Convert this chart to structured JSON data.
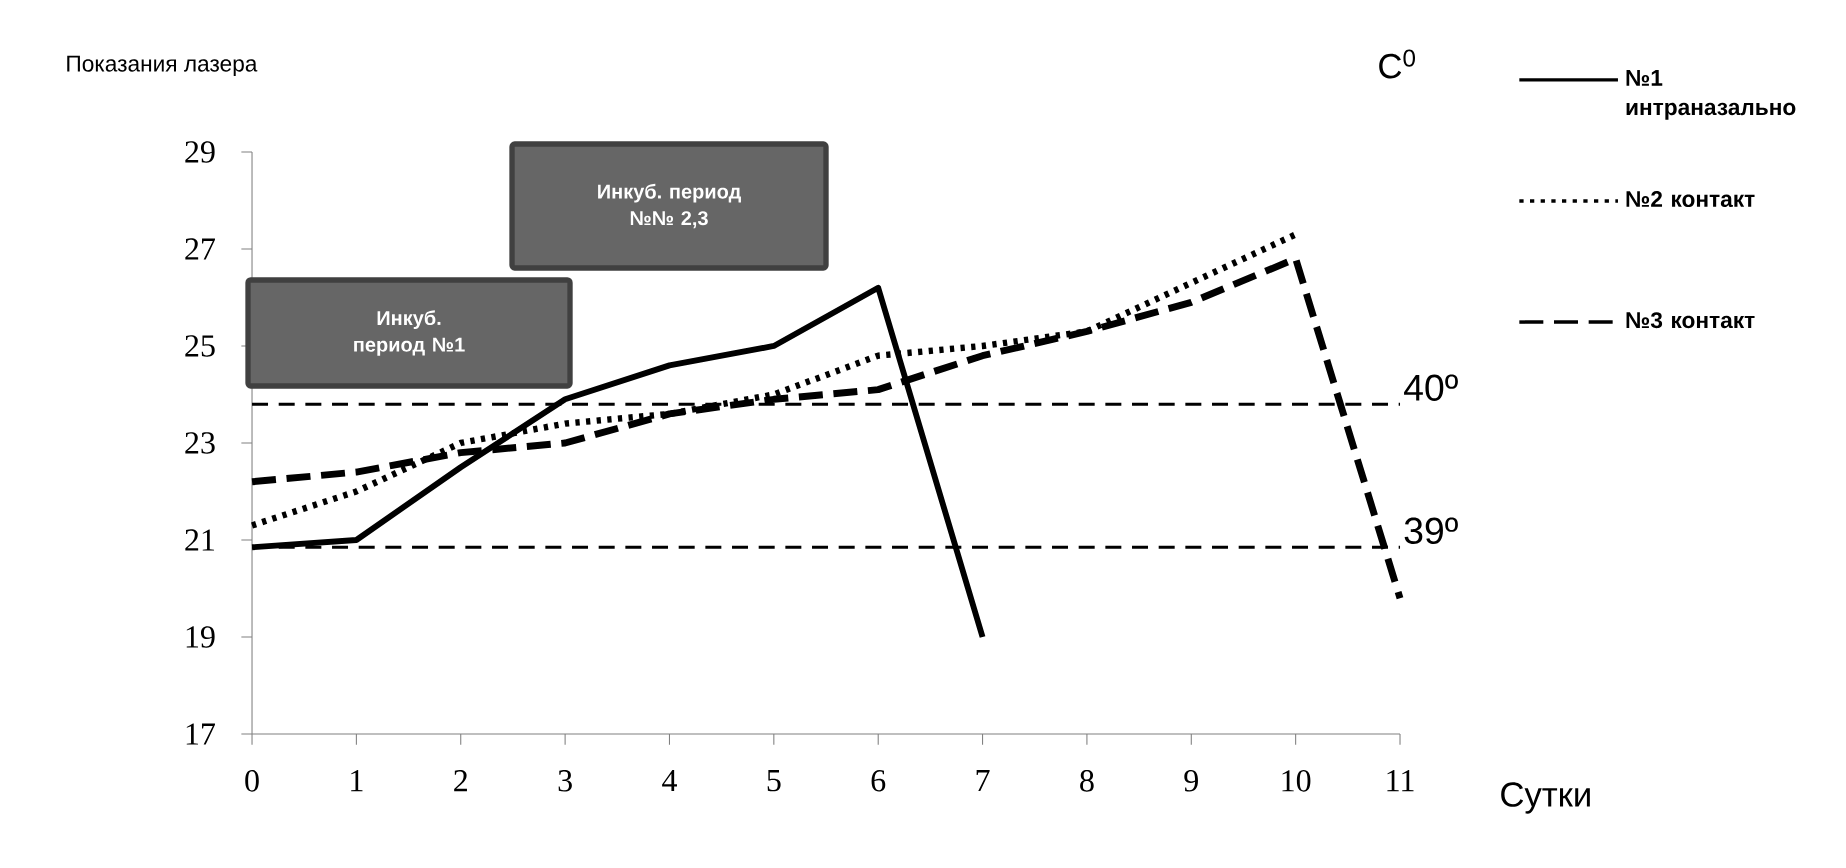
{
  "chart_data": {
    "type": "line",
    "ylabel": "Показания лазера",
    "xlabel": "Сутки",
    "x": [
      0,
      1,
      2,
      3,
      4,
      5,
      6,
      7,
      8,
      9,
      10,
      11
    ],
    "xlim": [
      0,
      11
    ],
    "xticks": [
      0,
      1,
      2,
      3,
      4,
      5,
      6,
      7,
      8,
      9,
      10,
      11
    ],
    "ylim": [
      17,
      29
    ],
    "yticks": [
      17,
      19,
      21,
      23,
      25,
      27,
      29
    ],
    "marker": "none",
    "legend": "right",
    "series": [
      {
        "name": "№1 интраназально",
        "color": "#000000",
        "line_style": "solid",
        "values": [
          20.85,
          21.0,
          22.5,
          23.9,
          24.6,
          25.0,
          26.2,
          19.0,
          null,
          null,
          null,
          null
        ]
      },
      {
        "name": "№2 контакт",
        "color": "#000000",
        "line_style": "dotted",
        "values": [
          21.3,
          22.0,
          23.0,
          23.4,
          23.6,
          24.0,
          24.8,
          25.0,
          25.3,
          26.3,
          27.3,
          null
        ]
      },
      {
        "name": "№3 контакт",
        "color": "#000000",
        "line_style": "dashed",
        "values": [
          22.2,
          22.4,
          22.8,
          23.0,
          23.6,
          23.9,
          24.1,
          24.8,
          25.3,
          25.9,
          26.8,
          19.8
        ]
      }
    ],
    "ref_lines": [
      {
        "axis": "y",
        "value": 23.8,
        "color": "#000000",
        "line_style": "dashed"
      },
      {
        "axis": "y",
        "value": 20.85,
        "color": "#000000",
        "line_style": "dashed"
      }
    ],
    "annotations": [
      "С$^{0}$",
      "Инкуб. период №1",
      "Инкуб. период №№ 2,3",
      {
        "text": "40º",
        "x": 11,
        "y": 23.8
      },
      {
        "text": "39º",
        "x": 11,
        "y": 20.85
      }
    ]
  }
}
